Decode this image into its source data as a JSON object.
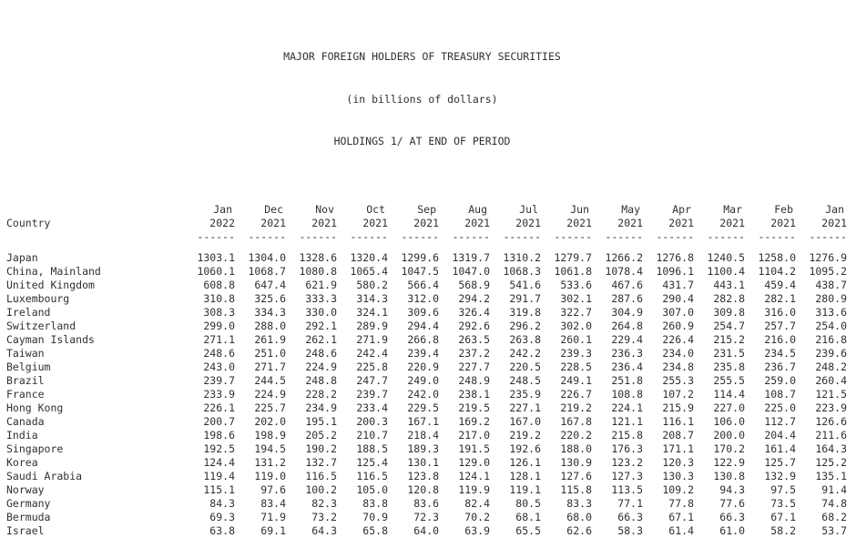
{
  "title": {
    "line1": "MAJOR FOREIGN HOLDERS OF TREASURY SECURITIES",
    "line2": "(in billions of dollars)",
    "line3": "HOLDINGS 1/ AT END OF PERIOD"
  },
  "colors": {
    "text": "#303030",
    "background": "#ffffff"
  },
  "table": {
    "country_header": "Country",
    "underline": "------",
    "columns": [
      {
        "month": "Jan",
        "year": "2022"
      },
      {
        "month": "Dec",
        "year": "2021"
      },
      {
        "month": "Nov",
        "year": "2021"
      },
      {
        "month": "Oct",
        "year": "2021"
      },
      {
        "month": "Sep",
        "year": "2021"
      },
      {
        "month": "Aug",
        "year": "2021"
      },
      {
        "month": "Jul",
        "year": "2021"
      },
      {
        "month": "Jun",
        "year": "2021"
      },
      {
        "month": "May",
        "year": "2021"
      },
      {
        "month": "Apr",
        "year": "2021"
      },
      {
        "month": "Mar",
        "year": "2021"
      },
      {
        "month": "Feb",
        "year": "2021"
      },
      {
        "month": "Jan",
        "year": "2021"
      }
    ],
    "rows": [
      {
        "country": "Japan",
        "values": [
          "1303.1",
          "1304.0",
          "1328.6",
          "1320.4",
          "1299.6",
          "1319.7",
          "1310.2",
          "1279.7",
          "1266.2",
          "1276.8",
          "1240.5",
          "1258.0",
          "1276.9"
        ]
      },
      {
        "country": "China, Mainland",
        "values": [
          "1060.1",
          "1068.7",
          "1080.8",
          "1065.4",
          "1047.5",
          "1047.0",
          "1068.3",
          "1061.8",
          "1078.4",
          "1096.1",
          "1100.4",
          "1104.2",
          "1095.2"
        ]
      },
      {
        "country": "United Kingdom",
        "values": [
          "608.8",
          "647.4",
          "621.9",
          "580.2",
          "566.4",
          "568.9",
          "541.6",
          "533.6",
          "467.6",
          "431.7",
          "443.1",
          "459.4",
          "438.7"
        ]
      },
      {
        "country": "Luxembourg",
        "values": [
          "310.8",
          "325.6",
          "333.3",
          "314.3",
          "312.0",
          "294.2",
          "291.7",
          "302.1",
          "287.6",
          "290.4",
          "282.8",
          "282.1",
          "280.9"
        ]
      },
      {
        "country": "Ireland",
        "values": [
          "308.3",
          "334.3",
          "330.0",
          "324.1",
          "309.6",
          "326.4",
          "319.8",
          "322.7",
          "304.9",
          "307.0",
          "309.8",
          "316.0",
          "313.6"
        ]
      },
      {
        "country": "Switzerland",
        "values": [
          "299.0",
          "288.0",
          "292.1",
          "289.9",
          "294.4",
          "292.6",
          "296.2",
          "302.0",
          "264.8",
          "260.9",
          "254.7",
          "257.7",
          "254.0"
        ]
      },
      {
        "country": "Cayman Islands",
        "values": [
          "271.1",
          "261.9",
          "262.1",
          "271.9",
          "266.8",
          "263.5",
          "263.8",
          "260.1",
          "229.4",
          "226.4",
          "215.2",
          "216.0",
          "216.8"
        ]
      },
      {
        "country": "Taiwan",
        "values": [
          "248.6",
          "251.0",
          "248.6",
          "242.4",
          "239.4",
          "237.2",
          "242.2",
          "239.3",
          "236.3",
          "234.0",
          "231.5",
          "234.5",
          "239.6"
        ]
      },
      {
        "country": "Belgium",
        "values": [
          "243.0",
          "271.7",
          "224.9",
          "225.8",
          "220.9",
          "227.7",
          "220.5",
          "228.5",
          "236.4",
          "234.8",
          "235.8",
          "236.7",
          "248.2"
        ]
      },
      {
        "country": "Brazil",
        "values": [
          "239.7",
          "244.5",
          "248.8",
          "247.7",
          "249.0",
          "248.9",
          "248.5",
          "249.1",
          "251.8",
          "255.3",
          "255.5",
          "259.0",
          "260.4"
        ]
      },
      {
        "country": "France",
        "values": [
          "233.9",
          "224.9",
          "228.2",
          "239.7",
          "242.0",
          "238.1",
          "235.9",
          "226.7",
          "108.8",
          "107.2",
          "114.4",
          "108.7",
          "121.5"
        ]
      },
      {
        "country": "Hong Kong",
        "values": [
          "226.1",
          "225.7",
          "234.9",
          "233.4",
          "229.5",
          "219.5",
          "227.1",
          "219.2",
          "224.1",
          "215.9",
          "227.0",
          "225.0",
          "223.9"
        ]
      },
      {
        "country": "Canada",
        "values": [
          "200.7",
          "202.0",
          "195.1",
          "200.3",
          "167.1",
          "169.2",
          "167.0",
          "167.8",
          "121.1",
          "116.1",
          "106.0",
          "112.7",
          "126.6"
        ]
      },
      {
        "country": "India",
        "values": [
          "198.6",
          "198.9",
          "205.2",
          "210.7",
          "218.4",
          "217.0",
          "219.2",
          "220.2",
          "215.8",
          "208.7",
          "200.0",
          "204.4",
          "211.6"
        ]
      },
      {
        "country": "Singapore",
        "values": [
          "192.5",
          "194.5",
          "190.2",
          "188.5",
          "189.3",
          "191.5",
          "192.6",
          "188.0",
          "176.3",
          "171.1",
          "170.2",
          "161.4",
          "164.3"
        ]
      },
      {
        "country": "Korea",
        "values": [
          "124.4",
          "131.2",
          "132.7",
          "125.4",
          "130.1",
          "129.0",
          "126.1",
          "130.9",
          "123.2",
          "120.3",
          "122.9",
          "125.7",
          "125.2"
        ]
      },
      {
        "country": "Saudi Arabia",
        "values": [
          "119.4",
          "119.0",
          "116.5",
          "116.5",
          "123.8",
          "124.1",
          "128.1",
          "127.6",
          "127.3",
          "130.3",
          "130.8",
          "132.9",
          "135.1"
        ]
      },
      {
        "country": "Norway",
        "values": [
          "115.1",
          "97.6",
          "100.2",
          "105.0",
          "120.8",
          "119.9",
          "119.1",
          "115.8",
          "113.5",
          "109.2",
          "94.3",
          "97.5",
          "91.4"
        ]
      },
      {
        "country": "Germany",
        "values": [
          "84.3",
          "83.4",
          "82.3",
          "83.8",
          "83.6",
          "82.4",
          "80.5",
          "83.3",
          "77.1",
          "77.8",
          "77.6",
          "73.5",
          "74.8"
        ]
      },
      {
        "country": "Bermuda",
        "values": [
          "69.3",
          "71.9",
          "73.2",
          "70.9",
          "72.3",
          "70.2",
          "68.1",
          "68.0",
          "66.3",
          "67.1",
          "66.3",
          "67.1",
          "68.2"
        ]
      },
      {
        "country": "Israel",
        "values": [
          "63.8",
          "69.1",
          "64.3",
          "65.8",
          "64.0",
          "63.9",
          "65.5",
          "62.6",
          "58.3",
          "61.4",
          "61.0",
          "58.2",
          "53.7"
        ]
      }
    ]
  }
}
